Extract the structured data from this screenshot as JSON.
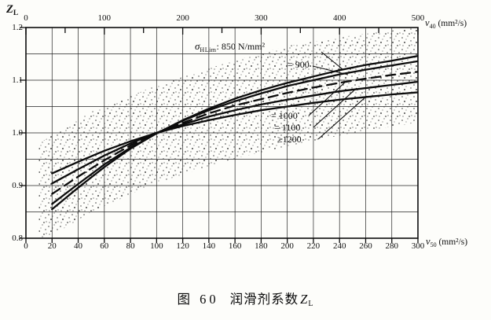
{
  "figure": {
    "caption": {
      "fig": "图 60",
      "title": "润滑剂系数",
      "symbol": "Z",
      "symbol_sub": "L"
    }
  },
  "axes": {
    "y_title": {
      "symbol": "Z",
      "sub": "L"
    },
    "top_title": {
      "symbol": "ν",
      "sub": "40",
      "unit": "(mm²/s)"
    },
    "bottom_title": {
      "symbol": "ν",
      "sub": "50",
      "unit": "(mm²/s)"
    }
  },
  "annotations": {
    "sigma": {
      "symbol": "σ",
      "sub": "HLim",
      "rest": ": 850 N/mm²"
    },
    "c900": "= 900",
    "c1000": "= 1000",
    "c1100": "= 1100",
    "c1200": "≥1200"
  },
  "chart_data": {
    "type": "line",
    "title": "图 60 润滑剂系数 ZL",
    "x_axis_bottom": {
      "label": "ν50 (mm²/s)",
      "range": [
        0,
        300
      ],
      "ticks": [
        0,
        20,
        40,
        60,
        80,
        100,
        120,
        140,
        160,
        180,
        200,
        220,
        240,
        260,
        280,
        300
      ]
    },
    "x_axis_top": {
      "label": "ν40 (mm²/s)",
      "range": [
        0,
        500
      ],
      "tick_labels": [
        0,
        100,
        200,
        300,
        400,
        500
      ],
      "minor_tick_step": 50
    },
    "y_axis": {
      "label": "ZL",
      "range": [
        0.8,
        1.2
      ],
      "tick_labels": [
        1.2,
        1.1,
        1.0,
        0.9,
        0.8
      ],
      "grid_step": 0.05
    },
    "grid": "both, every 20 (x) and 0.05 (y)",
    "legend_position": "in-plot annotations with leader lines",
    "x": [
      20,
      40,
      60,
      80,
      100,
      120,
      140,
      160,
      180,
      200,
      220,
      240,
      260,
      280,
      300
    ],
    "series": [
      {
        "name": "σHLim: 850 N/mm²",
        "style": "solid",
        "values": [
          0.855,
          0.896,
          0.935,
          0.97,
          0.999,
          1.024,
          1.046,
          1.065,
          1.081,
          1.095,
          1.107,
          1.119,
          1.129,
          1.137,
          1.146
        ]
      },
      {
        "name": "= 900",
        "style": "solid",
        "values": [
          0.865,
          0.903,
          0.94,
          0.972,
          0.999,
          1.023,
          1.043,
          1.06,
          1.075,
          1.089,
          1.1,
          1.111,
          1.12,
          1.128,
          1.136
        ]
      },
      {
        "name": "= 1000",
        "style": "dashed",
        "values": [
          0.884,
          0.917,
          0.948,
          0.976,
          1.0,
          1.019,
          1.037,
          1.052,
          1.064,
          1.076,
          1.086,
          1.095,
          1.103,
          1.11,
          1.116
        ]
      },
      {
        "name": "= 1100",
        "style": "solid",
        "values": [
          0.904,
          0.931,
          0.957,
          0.98,
          1.0,
          1.016,
          1.031,
          1.043,
          1.054,
          1.063,
          1.071,
          1.079,
          1.085,
          1.091,
          1.097
        ]
      },
      {
        "name": "≥1200",
        "style": "solid",
        "values": [
          0.923,
          0.945,
          0.966,
          0.984,
          1.0,
          1.013,
          1.024,
          1.034,
          1.043,
          1.05,
          1.057,
          1.063,
          1.068,
          1.073,
          1.077
        ]
      }
    ],
    "scatter_band": {
      "description": "stippled tolerance band around curve family",
      "x": [
        10,
        50,
        100,
        150,
        200,
        250,
        300
      ],
      "upper": [
        0.98,
        1.04,
        1.09,
        1.13,
        1.165,
        1.185,
        1.2
      ],
      "lower": [
        0.79,
        0.85,
        0.905,
        0.945,
        0.975,
        1.0,
        1.02
      ]
    }
  }
}
